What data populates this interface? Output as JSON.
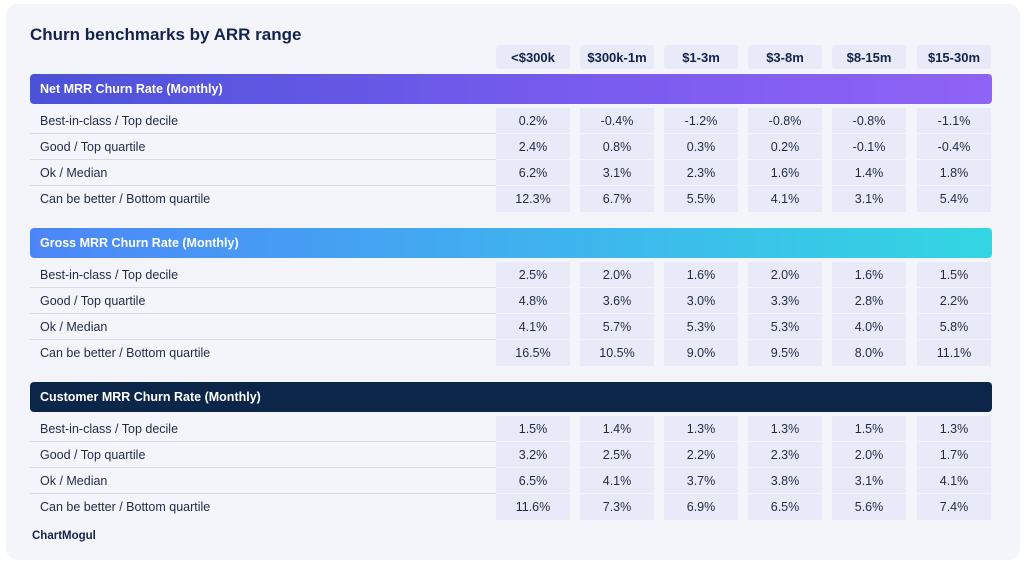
{
  "title": "Churn benchmarks by ARR range",
  "logo": "ChartMogul",
  "chart_data": {
    "type": "table",
    "title": "Churn benchmarks by ARR range",
    "columns": [
      "<$300k",
      "$300k-1m",
      "$1-3m",
      "$3-8m",
      "$8-15m",
      "$15-30m"
    ],
    "sections": [
      {
        "name": "Net MRR Churn Rate (Monthly)",
        "rows": [
          {
            "label": "Best-in-class / Top decile",
            "values": [
              "0.2%",
              "-0.4%",
              "-1.2%",
              "-0.8%",
              "-0.8%",
              "-1.1%"
            ]
          },
          {
            "label": "Good / Top quartile",
            "values": [
              "2.4%",
              "0.8%",
              "0.3%",
              "0.2%",
              "-0.1%",
              "-0.4%"
            ]
          },
          {
            "label": "Ok / Median",
            "values": [
              "6.2%",
              "3.1%",
              "2.3%",
              "1.6%",
              "1.4%",
              "1.8%"
            ]
          },
          {
            "label": "Can be better / Bottom quartile",
            "values": [
              "12.3%",
              "6.7%",
              "5.5%",
              "4.1%",
              "3.1%",
              "5.4%"
            ]
          }
        ]
      },
      {
        "name": "Gross MRR Churn Rate (Monthly)",
        "rows": [
          {
            "label": "Best-in-class / Top decile",
            "values": [
              "2.5%",
              "2.0%",
              "1.6%",
              "2.0%",
              "1.6%",
              "1.5%"
            ]
          },
          {
            "label": "Good / Top quartile",
            "values": [
              "4.8%",
              "3.6%",
              "3.0%",
              "3.3%",
              "2.8%",
              "2.2%"
            ]
          },
          {
            "label": "Ok / Median",
            "values": [
              "4.1%",
              "5.7%",
              "5.3%",
              "5.3%",
              "4.0%",
              "5.8%"
            ]
          },
          {
            "label": "Can be better / Bottom quartile",
            "values": [
              "16.5%",
              "10.5%",
              "9.0%",
              "9.5%",
              "8.0%",
              "11.1%"
            ]
          }
        ]
      },
      {
        "name": "Customer MRR Churn Rate (Monthly)",
        "rows": [
          {
            "label": "Best-in-class / Top decile",
            "values": [
              "1.5%",
              "1.4%",
              "1.3%",
              "1.3%",
              "1.5%",
              "1.3%"
            ]
          },
          {
            "label": "Good / Top quartile",
            "values": [
              "3.2%",
              "2.5%",
              "2.2%",
              "2.3%",
              "2.0%",
              "1.7%"
            ]
          },
          {
            "label": "Ok / Median",
            "values": [
              "6.5%",
              "4.1%",
              "3.7%",
              "3.8%",
              "3.1%",
              "4.1%"
            ]
          },
          {
            "label": "Can be better / Bottom quartile",
            "values": [
              "11.6%",
              "7.3%",
              "6.9%",
              "6.5%",
              "5.6%",
              "7.4%"
            ]
          }
        ]
      }
    ],
    "section_colors": [
      "#5b55e0",
      "#3fb4ee",
      "#0b2648"
    ]
  }
}
